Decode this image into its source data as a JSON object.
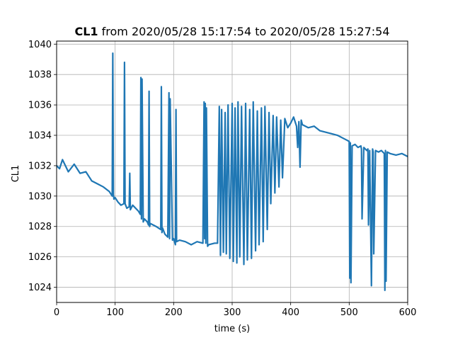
{
  "chart_data": {
    "type": "line",
    "title": {
      "bold": "CL1",
      "rest": " from 2020/05/28 15:17:54 to 2020/05/28 15:27:54"
    },
    "xlabel": "time (s)",
    "ylabel": "CL1",
    "xlim": [
      0,
      600
    ],
    "ylim": [
      1023,
      1040.2
    ],
    "xticks": [
      0,
      100,
      200,
      300,
      400,
      500,
      600
    ],
    "yticks": [
      1024,
      1026,
      1028,
      1030,
      1032,
      1034,
      1036,
      1038,
      1040
    ],
    "grid": true,
    "color": "#1f77b4",
    "series": [
      {
        "x": [
          0,
          5,
          10,
          20,
          30,
          40,
          50,
          60,
          70,
          80,
          90,
          95,
          96,
          97,
          98,
          100,
          105,
          110,
          115,
          116,
          117,
          120,
          124,
          125,
          126,
          130,
          140,
          143,
          144,
          145,
          146,
          148,
          150,
          155,
          157,
          158,
          159,
          160,
          170,
          178,
          179,
          180,
          181,
          185,
          190,
          192,
          193,
          194,
          198,
          200,
          203,
          204,
          205,
          210,
          220,
          230,
          240,
          250,
          252,
          253,
          254,
          255,
          256,
          258,
          260,
          270,
          275,
          278,
          280,
          282,
          285,
          288,
          290,
          293,
          296,
          300,
          302,
          305,
          308,
          310,
          313,
          316,
          320,
          323,
          326,
          330,
          333,
          336,
          340,
          343,
          346,
          350,
          353,
          356,
          360,
          363,
          366,
          370,
          373,
          376,
          380,
          383,
          386,
          390,
          395,
          400,
          405,
          410,
          412,
          414,
          416,
          418,
          420,
          430,
          440,
          450,
          460,
          470,
          480,
          490,
          495,
          500,
          501,
          502,
          503,
          505,
          510,
          515,
          520,
          521,
          522,
          525,
          530,
          532,
          533,
          535,
          538,
          540,
          541,
          542,
          545,
          550,
          555,
          560,
          561,
          562,
          563,
          565,
          570,
          580,
          590,
          600
        ],
        "y": [
          1032,
          1031.8,
          1032.4,
          1031.6,
          1032.1,
          1031.5,
          1031.6,
          1031,
          1030.8,
          1030.6,
          1030.3,
          1030,
          1039.4,
          1030.1,
          1029.8,
          1029.9,
          1029.6,
          1029.4,
          1029.5,
          1038.8,
          1029.5,
          1029.2,
          1029.3,
          1031.5,
          1029.1,
          1029.4,
          1029,
          1028.8,
          1037.8,
          1028.5,
          1037.7,
          1028.3,
          1028.5,
          1028.3,
          1028.1,
          1036.9,
          1028,
          1028.2,
          1028,
          1027.8,
          1037.2,
          1027.6,
          1027.9,
          1027.5,
          1027.3,
          1036.8,
          1027.2,
          1036.4,
          1027.1,
          1027.2,
          1026.8,
          1035.7,
          1027,
          1027.1,
          1027,
          1026.8,
          1027,
          1026.9,
          1036.2,
          1027.2,
          1036.1,
          1026.9,
          1035.8,
          1026.7,
          1026.8,
          1026.9,
          1026.9,
          1035.9,
          1026.1,
          1035.7,
          1026.3,
          1035.5,
          1026.2,
          1036,
          1025.9,
          1036.1,
          1025.7,
          1035.8,
          1025.6,
          1036.2,
          1026,
          1035.9,
          1025.5,
          1036.1,
          1025.8,
          1035.7,
          1025.9,
          1036.2,
          1026.4,
          1035.6,
          1026.8,
          1035.8,
          1027,
          1035.9,
          1027.8,
          1035.5,
          1029.5,
          1035.3,
          1030.2,
          1035.2,
          1030.6,
          1035,
          1031.2,
          1035.1,
          1034.5,
          1034.8,
          1035.2,
          1034.6,
          1033.2,
          1034.9,
          1031.9,
          1035,
          1034.7,
          1034.5,
          1034.6,
          1034.3,
          1034.2,
          1034.1,
          1034,
          1033.8,
          1033.7,
          1033.6,
          1024.6,
          1033.5,
          1024.3,
          1033.3,
          1033.4,
          1033.2,
          1033.3,
          1033.1,
          1028.5,
          1033.2,
          1033,
          1033.1,
          1028.1,
          1033,
          1024.1,
          1033.1,
          1032.9,
          1026.2,
          1033,
          1032.9,
          1033,
          1032.8,
          1023.8,
          1033,
          1024.4,
          1032.9,
          1032.8,
          1032.7,
          1032.8,
          1032.6
        ]
      }
    ]
  }
}
